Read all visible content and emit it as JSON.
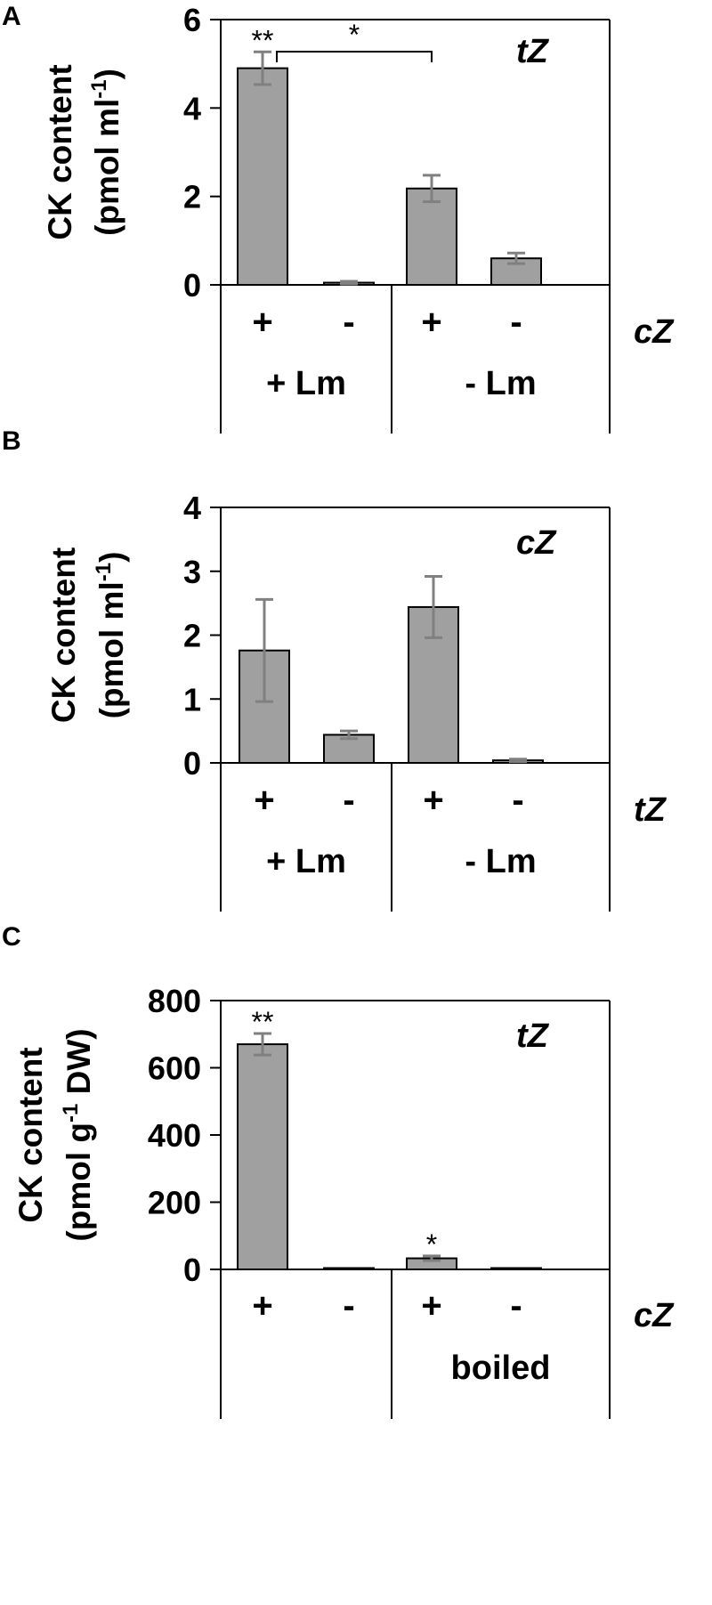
{
  "figure": {
    "panels": [
      "A",
      "B",
      "C"
    ]
  },
  "chart_data": [
    {
      "panel": "A",
      "type": "bar",
      "title": "tZ",
      "ylabel_line1": "CK content",
      "ylabel_line2": "(pmol ml",
      "ylabel_sup": "-1",
      "ylabel_close": ")",
      "ylim": [
        0,
        6
      ],
      "yticks": [
        "0",
        "2",
        "4",
        "6"
      ],
      "categories": [
        "+",
        "-",
        "+",
        "-"
      ],
      "row_label": "cZ",
      "groups": [
        "+ Lm",
        "- Lm"
      ],
      "values": [
        4.9,
        0.05,
        2.18,
        0.6
      ],
      "errors": [
        0.37,
        0.03,
        0.3,
        0.12
      ],
      "annotations": [
        {
          "text": "**",
          "bar": 0
        },
        {
          "text": "*",
          "bracket": [
            0,
            2
          ]
        }
      ],
      "bar_color": "#a0a0a0",
      "error_color": "#808080",
      "grid": false
    },
    {
      "panel": "B",
      "type": "bar",
      "title": "cZ",
      "ylabel_line1": "CK content",
      "ylabel_line2": "(pmol ml",
      "ylabel_sup": "-1",
      "ylabel_close": ")",
      "ylim": [
        0,
        4
      ],
      "yticks": [
        "0",
        "1",
        "2",
        "3",
        "4"
      ],
      "categories": [
        "+",
        "-",
        "+",
        "-"
      ],
      "row_label": "tZ",
      "groups": [
        "+ Lm",
        "- Lm"
      ],
      "values": [
        1.76,
        0.44,
        2.44,
        0.04
      ],
      "errors": [
        0.8,
        0.06,
        0.48,
        0.02
      ],
      "annotations": [],
      "bar_color": "#a0a0a0",
      "error_color": "#808080",
      "grid": false
    },
    {
      "panel": "C",
      "type": "bar",
      "title": "tZ",
      "ylabel_line1": "CK content",
      "ylabel_line2": "(pmol g",
      "ylabel_sup": "-1",
      "ylabel_close": " DW)",
      "ylim": [
        0,
        800
      ],
      "yticks": [
        "0",
        "200",
        "400",
        "600",
        "800"
      ],
      "categories": [
        "+",
        "-",
        "+",
        "-"
      ],
      "row_label": "cZ",
      "groups": [
        "",
        "boiled"
      ],
      "values": [
        670,
        1,
        33,
        1
      ],
      "errors": [
        32,
        0,
        7,
        0
      ],
      "annotations": [
        {
          "text": "**",
          "bar": 0
        },
        {
          "text": "*",
          "bar": 2
        }
      ],
      "bar_color": "#a0a0a0",
      "error_color": "#808080",
      "grid": false
    }
  ]
}
